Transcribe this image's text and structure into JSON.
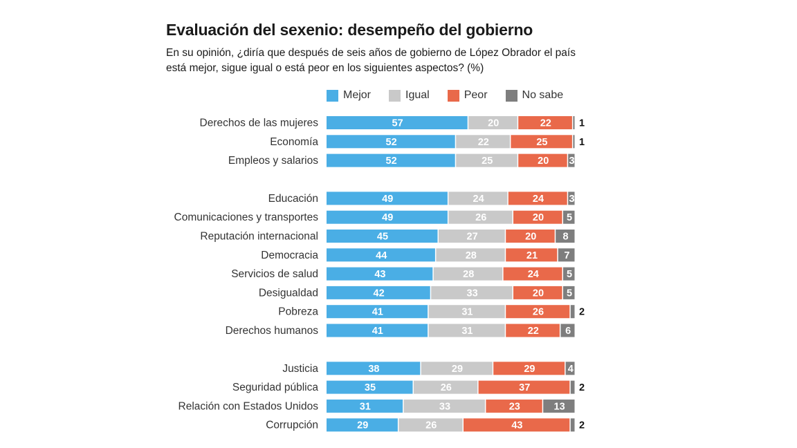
{
  "chart_data": {
    "type": "bar",
    "stacked": true,
    "orientation": "horizontal",
    "title": "Evaluación del sexenio: desempeño del gobierno",
    "subtitle": "En su opinión, ¿diría que después de seis años de gobierno de López Obrador el país está mejor, sigue igual o está peor en los siguientes aspectos? (%)",
    "legend_position": "top",
    "grid": false,
    "xlim": [
      0,
      100
    ],
    "groups": [
      [
        "Derechos de las mujeres",
        "Economía",
        "Empleos y salarios"
      ],
      [
        "Educación",
        "Comunicaciones y transportes",
        "Reputación internacional",
        "Democracia",
        "Servicios de salud",
        "Desigualdad",
        "Pobreza",
        "Derechos humanos"
      ],
      [
        "Justicia",
        "Seguridad pública",
        "Relación con Estados Unidos",
        "Corrupción"
      ]
    ],
    "categories": [
      "Derechos de las mujeres",
      "Economía",
      "Empleos y salarios",
      "Educación",
      "Comunicaciones y transportes",
      "Reputación internacional",
      "Democracia",
      "Servicios de salud",
      "Desigualdad",
      "Pobreza",
      "Derechos humanos",
      "Justicia",
      "Seguridad pública",
      "Relación con Estados Unidos",
      "Corrupción"
    ],
    "series": [
      {
        "name": "Mejor",
        "color": "#4AAEE5",
        "values": [
          57,
          52,
          52,
          49,
          49,
          45,
          44,
          43,
          42,
          41,
          41,
          38,
          35,
          31,
          29
        ]
      },
      {
        "name": "Igual",
        "color": "#C9C9C9",
        "values": [
          20,
          22,
          25,
          24,
          26,
          27,
          28,
          28,
          33,
          31,
          31,
          29,
          26,
          33,
          26
        ]
      },
      {
        "name": "Peor",
        "color": "#E9694A",
        "values": [
          22,
          25,
          20,
          24,
          20,
          20,
          21,
          24,
          20,
          26,
          22,
          29,
          37,
          23,
          43
        ]
      },
      {
        "name": "No sabe",
        "color": "#7E7E7E",
        "values": [
          1,
          1,
          3,
          3,
          5,
          8,
          7,
          5,
          5,
          2,
          6,
          4,
          2,
          13,
          2
        ]
      }
    ]
  }
}
